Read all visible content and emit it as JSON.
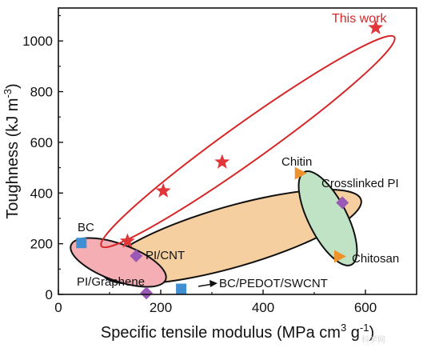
{
  "chart_data": {
    "type": "scatter",
    "title": "",
    "xlabel": "Specific tensile modulus (MPa cm",
    "xlabel_sup1": "3",
    "xlabel_mid": " g",
    "xlabel_sup2": "-1",
    "xlabel_end": ")",
    "ylabel": "Toughness (kJ m",
    "ylabel_sup": "-3",
    "ylabel_end": ")",
    "xlim": [
      0,
      700
    ],
    "ylim": [
      0,
      1130
    ],
    "xticks": [
      0,
      200,
      400,
      600
    ],
    "yticks": [
      0,
      200,
      400,
      600,
      800,
      1000
    ],
    "grid": false,
    "series": [
      {
        "name": "This work",
        "marker": "star",
        "color": "#e0363a",
        "points": [
          {
            "x": 135,
            "y": 210
          },
          {
            "x": 205,
            "y": 408
          },
          {
            "x": 320,
            "y": 522
          },
          {
            "x": 620,
            "y": 1052
          }
        ]
      },
      {
        "name": "BC",
        "marker": "square",
        "color": "#3f8fd2",
        "points": [
          {
            "x": 45,
            "y": 203
          }
        ]
      },
      {
        "name": "BC/PEDOT/SWCNT",
        "marker": "square",
        "color": "#3f8fd2",
        "points": [
          {
            "x": 240,
            "y": 22
          }
        ]
      },
      {
        "name": "PI/CNT",
        "marker": "diamond",
        "color": "#9b59b6",
        "points": [
          {
            "x": 152,
            "y": 152
          }
        ]
      },
      {
        "name": "PI/Graphene",
        "marker": "diamond",
        "color": "#9b59b6",
        "points": [
          {
            "x": 172,
            "y": 5
          }
        ]
      },
      {
        "name": "Crosslinked PI",
        "marker": "diamond",
        "color": "#9b59b6",
        "points": [
          {
            "x": 555,
            "y": 362
          }
        ]
      },
      {
        "name": "Chitin",
        "marker": "triangle",
        "color": "#f0922b",
        "points": [
          {
            "x": 473,
            "y": 478
          }
        ]
      },
      {
        "name": "Chitosan",
        "marker": "triangle",
        "color": "#f0922b",
        "points": [
          {
            "x": 550,
            "y": 150
          }
        ]
      }
    ],
    "ellipses": [
      {
        "name": "this-work",
        "fill": "none",
        "stroke": "#d62728"
      },
      {
        "name": "pi-composites",
        "fill": "#f6cfa0",
        "stroke": "#111111"
      },
      {
        "name": "bc-composites",
        "fill": "#f4aeb4",
        "stroke": "#111111"
      },
      {
        "name": "chitin-chitosan",
        "fill": "#bfe3c4",
        "stroke": "#111111"
      }
    ],
    "annotations": {
      "this_work": "This work",
      "chitin": "Chitin",
      "crosslinked_pi": "Crosslinked PI",
      "bc": "BC",
      "pi_cnt": "PI/CNT",
      "chitosan": "Chitosan",
      "pi_graphene": "PI/Graphene",
      "bc_pedot": "BC/PEDOT/SWCNT"
    }
  },
  "watermark": "科学网"
}
